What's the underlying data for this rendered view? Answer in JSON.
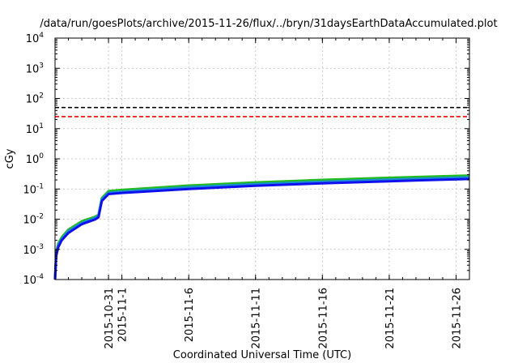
{
  "chart_data": {
    "type": "line",
    "title": "/data/run/goesPlots/archive/2015-11-26/flux/../bryn/31daysEarthDataAccumulated.plot",
    "xlabel": "Coordinated Universal Time (UTC)",
    "ylabel": "cGy",
    "yscale": "log",
    "ylim": [
      0.0001,
      10000
    ],
    "xlim": [
      "2015-10-27",
      "2015-11-27"
    ],
    "grid": true,
    "legend": "none",
    "y_ticks": [
      {
        "value": 0.0001,
        "base": "10",
        "exp": "-4"
      },
      {
        "value": 0.001,
        "base": "10",
        "exp": "-3"
      },
      {
        "value": 0.01,
        "base": "10",
        "exp": "-2"
      },
      {
        "value": 0.1,
        "base": "10",
        "exp": "-1"
      },
      {
        "value": 1,
        "base": "10",
        "exp": "0"
      },
      {
        "value": 10,
        "base": "10",
        "exp": "1"
      },
      {
        "value": 100,
        "base": "10",
        "exp": "2"
      },
      {
        "value": 1000,
        "base": "10",
        "exp": "3"
      },
      {
        "value": 10000,
        "base": "10",
        "exp": "4"
      }
    ],
    "x_ticks": [
      {
        "date": "2015-10-31",
        "label": "2015-10-31"
      },
      {
        "date": "2015-11-01",
        "label": "2015-11-1"
      },
      {
        "date": "2015-11-06",
        "label": "2015-11-6"
      },
      {
        "date": "2015-11-11",
        "label": "2015-11-11"
      },
      {
        "date": "2015-11-16",
        "label": "2015-11-16"
      },
      {
        "date": "2015-11-21",
        "label": "2015-11-21"
      },
      {
        "date": "2015-11-26",
        "label": "2015-11-26"
      }
    ],
    "reference_lines": [
      {
        "y": 50,
        "color": "#000000",
        "style": "dashed"
      },
      {
        "y": 25,
        "color": "#ff0000",
        "style": "dashed"
      }
    ],
    "series": [
      {
        "color": "#22bb22",
        "points": [
          [
            "2015-10-27",
            0.0001
          ],
          [
            "2015-10-27 02:00",
            0.0008
          ],
          [
            "2015-10-27 06:00",
            0.0016
          ],
          [
            "2015-10-27 12:00",
            0.0025
          ],
          [
            "2015-10-28",
            0.0045
          ],
          [
            "2015-10-29",
            0.0085
          ],
          [
            "2015-10-30",
            0.012
          ],
          [
            "2015-10-30 06:00",
            0.014
          ],
          [
            "2015-10-30 12:00",
            0.05
          ],
          [
            "2015-10-31",
            0.085
          ],
          [
            "2015-11-01",
            0.093
          ],
          [
            "2015-11-06",
            0.13
          ],
          [
            "2015-11-11",
            0.165
          ],
          [
            "2015-11-16",
            0.2
          ],
          [
            "2015-11-21",
            0.235
          ],
          [
            "2015-11-27",
            0.28
          ]
        ]
      },
      {
        "color": "#1a8fd0",
        "points": [
          [
            "2015-10-27",
            0.0001
          ],
          [
            "2015-10-27 02:00",
            0.0007
          ],
          [
            "2015-10-27 06:00",
            0.0014
          ],
          [
            "2015-10-27 12:00",
            0.0022
          ],
          [
            "2015-10-28",
            0.004
          ],
          [
            "2015-10-29",
            0.0075
          ],
          [
            "2015-10-30",
            0.011
          ],
          [
            "2015-10-30 06:00",
            0.013
          ],
          [
            "2015-10-30 12:00",
            0.045
          ],
          [
            "2015-10-31",
            0.075
          ],
          [
            "2015-11-01",
            0.082
          ],
          [
            "2015-11-06",
            0.115
          ],
          [
            "2015-11-11",
            0.145
          ],
          [
            "2015-11-16",
            0.175
          ],
          [
            "2015-11-21",
            0.205
          ],
          [
            "2015-11-27",
            0.245
          ]
        ]
      },
      {
        "color": "#1010ee",
        "points": [
          [
            "2015-10-27",
            0.0001
          ],
          [
            "2015-10-27 02:00",
            0.0006
          ],
          [
            "2015-10-27 06:00",
            0.0012
          ],
          [
            "2015-10-27 12:00",
            0.002
          ],
          [
            "2015-10-28",
            0.0035
          ],
          [
            "2015-10-29",
            0.0068
          ],
          [
            "2015-10-30",
            0.0098
          ],
          [
            "2015-10-30 06:00",
            0.0115
          ],
          [
            "2015-10-30 12:00",
            0.04
          ],
          [
            "2015-10-31",
            0.068
          ],
          [
            "2015-11-01",
            0.074
          ],
          [
            "2015-11-06",
            0.1
          ],
          [
            "2015-11-11",
            0.128
          ],
          [
            "2015-11-16",
            0.155
          ],
          [
            "2015-11-21",
            0.18
          ],
          [
            "2015-11-27",
            0.215
          ]
        ]
      }
    ]
  }
}
